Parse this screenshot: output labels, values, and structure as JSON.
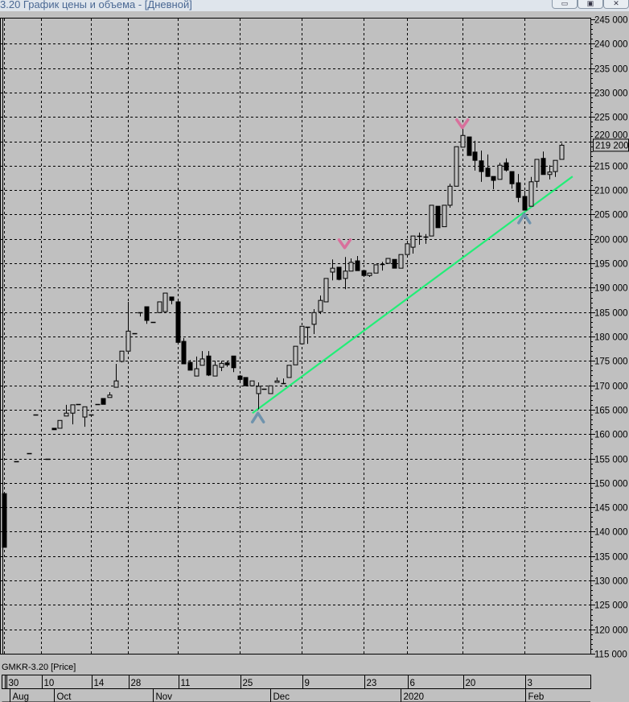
{
  "window": {
    "title": "3.20 График цены и объема - [Дневной]",
    "buttons": [
      "minimize",
      "restore",
      "close"
    ]
  },
  "legend": "GMKR-3.20 [Price]",
  "chart_data": {
    "type": "candlestick",
    "instrument": "GMKR-3.20",
    "ylim": [
      115000,
      245000
    ],
    "y_ticks": [
      245000,
      240000,
      235000,
      230000,
      225000,
      220000,
      215000,
      210000,
      205000,
      200000,
      195000,
      190000,
      185000,
      180000,
      175000,
      170000,
      165000,
      160000,
      155000,
      150000,
      145000,
      140000,
      135000,
      130000,
      125000,
      120000,
      115000
    ],
    "y_tick_labels": [
      "245 000",
      "240 000",
      "235 000",
      "230 000",
      "225 000",
      "220 000",
      "215 000",
      "210 000",
      "205 000",
      "200 000",
      "195 000",
      "190 000",
      "185 000",
      "180 000",
      "175 000",
      "170 000",
      "165 000",
      "160 000",
      "155 000",
      "150 000",
      "145 000",
      "140 000",
      "135 000",
      "130 000",
      "125 000",
      "120 000",
      "115 000"
    ],
    "grid": true,
    "last_price": 219200,
    "last_price_label": "219 200",
    "x_day_ticks": [
      {
        "bar": 0,
        "label": "30"
      },
      {
        "bar": 6,
        "label": "10"
      },
      {
        "bar": 14,
        "label": "14"
      },
      {
        "bar": 20,
        "label": "28"
      },
      {
        "bar": 28,
        "label": "11"
      },
      {
        "bar": 38,
        "label": "25"
      },
      {
        "bar": 48,
        "label": "9"
      },
      {
        "bar": 58,
        "label": "23"
      },
      {
        "bar": 65,
        "label": "6"
      },
      {
        "bar": 74,
        "label": "20"
      },
      {
        "bar": 84,
        "label": "3"
      }
    ],
    "x_month_ticks": [
      {
        "bar": 1,
        "label": "Aug"
      },
      {
        "bar": 8,
        "label": "Oct"
      },
      {
        "bar": 24,
        "label": "Nov"
      },
      {
        "bar": 43,
        "label": "Dec"
      },
      {
        "bar": 64,
        "label": "2020"
      },
      {
        "bar": 84,
        "label": "Feb"
      }
    ],
    "candles": [
      {
        "bar": 0,
        "o": 147800,
        "h": 147800,
        "l": 136800,
        "c": 136800
      },
      {
        "bar": 2,
        "o": 154400,
        "h": 154400,
        "l": 154400,
        "c": 154400
      },
      {
        "bar": 4,
        "o": 156100,
        "h": 156100,
        "l": 156100,
        "c": 156100
      },
      {
        "bar": 5,
        "o": 164000,
        "h": 164000,
        "l": 164000,
        "c": 164000
      },
      {
        "bar": 7,
        "o": 154900,
        "h": 154900,
        "l": 154900,
        "c": 154900
      },
      {
        "bar": 8,
        "o": 161200,
        "h": 161200,
        "l": 160900,
        "c": 160900
      },
      {
        "bar": 9,
        "o": 161200,
        "h": 162800,
        "l": 161200,
        "c": 162800
      },
      {
        "bar": 10,
        "o": 163700,
        "h": 166000,
        "l": 163700,
        "c": 164300
      },
      {
        "bar": 11,
        "o": 164300,
        "h": 166000,
        "l": 162000,
        "c": 166000
      },
      {
        "bar": 12,
        "o": 166100,
        "h": 166100,
        "l": 166100,
        "c": 166100
      },
      {
        "bar": 13,
        "o": 163500,
        "h": 165600,
        "l": 161500,
        "c": 165600
      },
      {
        "bar": 14,
        "o": 164000,
        "h": 164000,
        "l": 164000,
        "c": 164000
      },
      {
        "bar": 15,
        "o": 166200,
        "h": 166200,
        "l": 166200,
        "c": 166200
      },
      {
        "bar": 16,
        "o": 167300,
        "h": 167300,
        "l": 166100,
        "c": 166100
      },
      {
        "bar": 17,
        "o": 167500,
        "h": 168600,
        "l": 167500,
        "c": 168000
      },
      {
        "bar": 18,
        "o": 169600,
        "h": 174400,
        "l": 169600,
        "c": 170900
      },
      {
        "bar": 19,
        "o": 174900,
        "h": 177000,
        "l": 174700,
        "c": 177000
      },
      {
        "bar": 20,
        "o": 177000,
        "h": 187100,
        "l": 177000,
        "c": 181100
      },
      {
        "bar": 21,
        "o": 180600,
        "h": 180600,
        "l": 180600,
        "c": 180600
      },
      {
        "bar": 22,
        "o": 184900,
        "h": 184900,
        "l": 184100,
        "c": 184900
      },
      {
        "bar": 23,
        "o": 186100,
        "h": 186100,
        "l": 182600,
        "c": 183300
      },
      {
        "bar": 24,
        "o": 183000,
        "h": 183000,
        "l": 183000,
        "c": 183000
      },
      {
        "bar": 25,
        "o": 184900,
        "h": 187100,
        "l": 184900,
        "c": 187100
      },
      {
        "bar": 26,
        "o": 185100,
        "h": 188900,
        "l": 185100,
        "c": 188900
      },
      {
        "bar": 27,
        "o": 188100,
        "h": 188100,
        "l": 186600,
        "c": 187400
      },
      {
        "bar": 28,
        "o": 187100,
        "h": 187300,
        "l": 178800,
        "c": 178800
      },
      {
        "bar": 29,
        "o": 179000,
        "h": 179700,
        "l": 174400,
        "c": 174400
      },
      {
        "bar": 30,
        "o": 174700,
        "h": 175200,
        "l": 173100,
        "c": 173100
      },
      {
        "bar": 31,
        "o": 171900,
        "h": 175900,
        "l": 171900,
        "c": 173400
      },
      {
        "bar": 32,
        "o": 174100,
        "h": 177000,
        "l": 174100,
        "c": 175400
      },
      {
        "bar": 33,
        "o": 176000,
        "h": 177000,
        "l": 171900,
        "c": 172100
      },
      {
        "bar": 34,
        "o": 171900,
        "h": 175000,
        "l": 171900,
        "c": 174100
      },
      {
        "bar": 35,
        "o": 173700,
        "h": 175000,
        "l": 172900,
        "c": 174500
      },
      {
        "bar": 36,
        "o": 174600,
        "h": 175000,
        "l": 173800,
        "c": 174200
      },
      {
        "bar": 37,
        "o": 176000,
        "h": 176000,
        "l": 172700,
        "c": 173600
      },
      {
        "bar": 38,
        "o": 171900,
        "h": 172100,
        "l": 170900,
        "c": 171200
      },
      {
        "bar": 39,
        "o": 171600,
        "h": 171600,
        "l": 169900,
        "c": 169900
      },
      {
        "bar": 40,
        "o": 169900,
        "h": 170900,
        "l": 169900,
        "c": 170900
      },
      {
        "bar": 41,
        "o": 168300,
        "h": 170600,
        "l": 165100,
        "c": 169800
      },
      {
        "bar": 42,
        "o": 169300,
        "h": 169300,
        "l": 169300,
        "c": 169300
      },
      {
        "bar": 43,
        "o": 168300,
        "h": 169900,
        "l": 168300,
        "c": 169900
      },
      {
        "bar": 44,
        "o": 170600,
        "h": 171600,
        "l": 170600,
        "c": 170900
      },
      {
        "bar": 45,
        "o": 170400,
        "h": 171400,
        "l": 170400,
        "c": 170400
      },
      {
        "bar": 46,
        "o": 171600,
        "h": 174100,
        "l": 171600,
        "c": 174100
      },
      {
        "bar": 47,
        "o": 174200,
        "h": 178000,
        "l": 174200,
        "c": 178000
      },
      {
        "bar": 48,
        "o": 178500,
        "h": 182100,
        "l": 178500,
        "c": 182100
      },
      {
        "bar": 49,
        "o": 181900,
        "h": 181900,
        "l": 178500,
        "c": 181900
      },
      {
        "bar": 50,
        "o": 182500,
        "h": 185600,
        "l": 180500,
        "c": 184900
      },
      {
        "bar": 51,
        "o": 185100,
        "h": 188400,
        "l": 184600,
        "c": 187400
      },
      {
        "bar": 52,
        "o": 187100,
        "h": 191900,
        "l": 187100,
        "c": 191900
      },
      {
        "bar": 53,
        "o": 193200,
        "h": 195800,
        "l": 191500,
        "c": 194000
      },
      {
        "bar": 54,
        "o": 194200,
        "h": 194200,
        "l": 191500,
        "c": 191700
      },
      {
        "bar": 55,
        "o": 191900,
        "h": 196300,
        "l": 189700,
        "c": 193400
      },
      {
        "bar": 56,
        "o": 193400,
        "h": 196000,
        "l": 193400,
        "c": 195200
      },
      {
        "bar": 57,
        "o": 195500,
        "h": 196500,
        "l": 193500,
        "c": 193500
      },
      {
        "bar": 58,
        "o": 193500,
        "h": 193500,
        "l": 192200,
        "c": 192500
      },
      {
        "bar": 59,
        "o": 192500,
        "h": 193000,
        "l": 192200,
        "c": 193000
      },
      {
        "bar": 60,
        "o": 193000,
        "h": 194700,
        "l": 193000,
        "c": 194700
      },
      {
        "bar": 61,
        "o": 194800,
        "h": 195300,
        "l": 193500,
        "c": 194800
      },
      {
        "bar": 62,
        "o": 195000,
        "h": 196000,
        "l": 195000,
        "c": 196000
      },
      {
        "bar": 63,
        "o": 195800,
        "h": 195800,
        "l": 194000,
        "c": 194000
      },
      {
        "bar": 64,
        "o": 194000,
        "h": 196800,
        "l": 194000,
        "c": 196800
      },
      {
        "bar": 65,
        "o": 196800,
        "h": 199100,
        "l": 196800,
        "c": 199000
      },
      {
        "bar": 66,
        "o": 198300,
        "h": 200600,
        "l": 197000,
        "c": 200600
      },
      {
        "bar": 67,
        "o": 200600,
        "h": 201300,
        "l": 198800,
        "c": 200600
      },
      {
        "bar": 68,
        "o": 200500,
        "h": 201000,
        "l": 199000,
        "c": 200500
      },
      {
        "bar": 69,
        "o": 200600,
        "h": 206900,
        "l": 200600,
        "c": 206900
      },
      {
        "bar": 70,
        "o": 206700,
        "h": 206700,
        "l": 202300,
        "c": 202300
      },
      {
        "bar": 71,
        "o": 202500,
        "h": 206900,
        "l": 202500,
        "c": 206900
      },
      {
        "bar": 72,
        "o": 206900,
        "h": 211300,
        "l": 206400,
        "c": 210800
      },
      {
        "bar": 73,
        "o": 210800,
        "h": 218900,
        "l": 210800,
        "c": 218900
      },
      {
        "bar": 74,
        "o": 218800,
        "h": 222900,
        "l": 218800,
        "c": 221200
      },
      {
        "bar": 75,
        "o": 220900,
        "h": 220900,
        "l": 217100,
        "c": 217100
      },
      {
        "bar": 76,
        "o": 217800,
        "h": 220100,
        "l": 214000,
        "c": 216100
      },
      {
        "bar": 77,
        "o": 216000,
        "h": 218100,
        "l": 211700,
        "c": 213800
      },
      {
        "bar": 78,
        "o": 214500,
        "h": 217300,
        "l": 212700,
        "c": 212800
      },
      {
        "bar": 79,
        "o": 212800,
        "h": 212800,
        "l": 210200,
        "c": 212000
      },
      {
        "bar": 80,
        "o": 212200,
        "h": 215600,
        "l": 212200,
        "c": 215100
      },
      {
        "bar": 81,
        "o": 215600,
        "h": 216500,
        "l": 213800,
        "c": 214100
      },
      {
        "bar": 82,
        "o": 213800,
        "h": 213800,
        "l": 210300,
        "c": 211300
      },
      {
        "bar": 83,
        "o": 211500,
        "h": 213300,
        "l": 207500,
        "c": 208500
      },
      {
        "bar": 84,
        "o": 208700,
        "h": 209900,
        "l": 205900,
        "c": 205900
      },
      {
        "bar": 85,
        "o": 206700,
        "h": 212700,
        "l": 206700,
        "c": 211700
      },
      {
        "bar": 86,
        "o": 211800,
        "h": 216300,
        "l": 210500,
        "c": 216300
      },
      {
        "bar": 87,
        "o": 216500,
        "h": 217900,
        "l": 213200,
        "c": 213200
      },
      {
        "bar": 88,
        "o": 213200,
        "h": 215100,
        "l": 212200,
        "c": 213700
      },
      {
        "bar": 89,
        "o": 213800,
        "h": 216100,
        "l": 212700,
        "c": 216100
      },
      {
        "bar": 90,
        "o": 216300,
        "h": 219600,
        "l": 216300,
        "c": 219200
      }
    ],
    "trendline": {
      "from": {
        "bar": 40.1,
        "price": 164300
      },
      "to": {
        "bar": 91.8,
        "price": 212800
      },
      "color": "#22ee77"
    },
    "markers": [
      {
        "type": "top",
        "bar": 74,
        "price": 223600,
        "color": "#d8709c"
      },
      {
        "type": "top",
        "bar": 55,
        "price": 199000,
        "color": "#d8709c"
      },
      {
        "type": "bottom",
        "bar": 41,
        "price": 163300,
        "color": "#6f93ad"
      },
      {
        "type": "bottom",
        "bar": 84,
        "price": 204100,
        "color": "#6f93ad"
      }
    ],
    "colors": {
      "background": "#c0c0c0",
      "bear": "#000000",
      "bull_fill": "#c0c0c0",
      "grid": "#000000"
    }
  }
}
